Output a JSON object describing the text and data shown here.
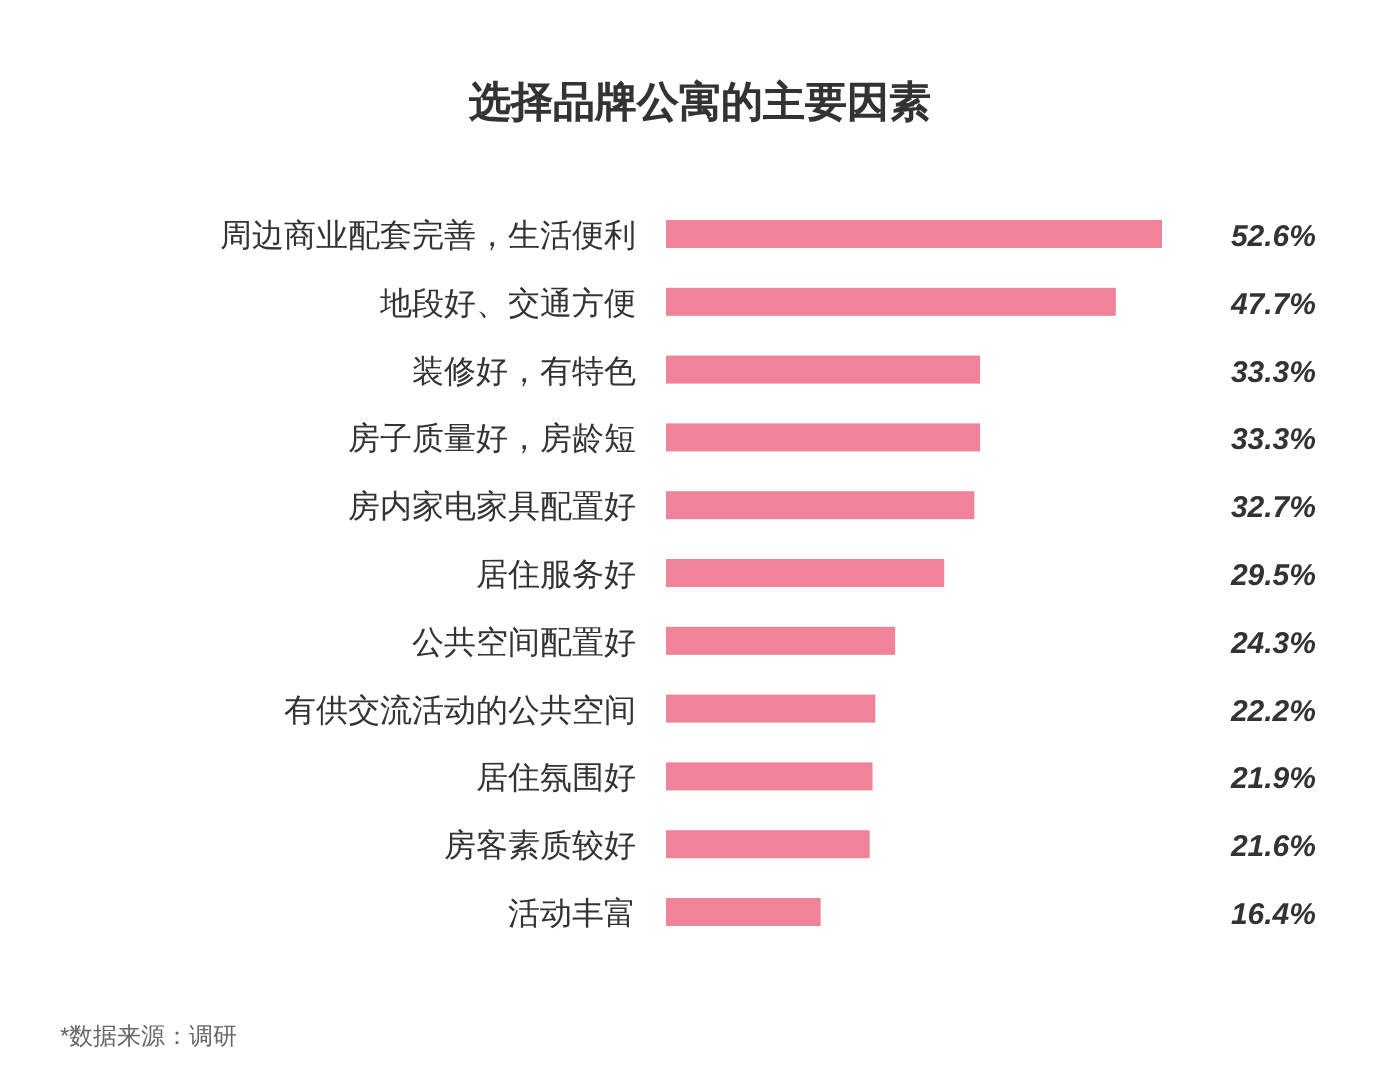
{
  "chart_data": {
    "type": "bar",
    "orientation": "horizontal",
    "title": "选择品牌公寓的主要因素",
    "categories": [
      "周边商业配套完善，生活便利",
      "地段好、交通方便",
      "装修好，有特色",
      "房子质量好，房龄短",
      "房内家电家具配置好",
      "居住服务好",
      "公共空间配置好",
      "有供交流活动的公共空间",
      "居住氛围好",
      "房客素质较好",
      "活动丰富"
    ],
    "values": [
      52.6,
      47.7,
      33.3,
      33.3,
      32.7,
      29.5,
      24.3,
      22.2,
      21.9,
      21.6,
      16.4
    ],
    "color": "#f0829a",
    "value_labels": [
      "52.6%",
      "47.7%",
      "33.3%",
      "33.3%",
      "32.7%",
      "29.5%",
      "24.3%",
      "22.2%",
      "21.9%",
      "21.6%",
      "16.4%"
    ],
    "annotations": [
      "*数据来源：调研"
    ]
  }
}
